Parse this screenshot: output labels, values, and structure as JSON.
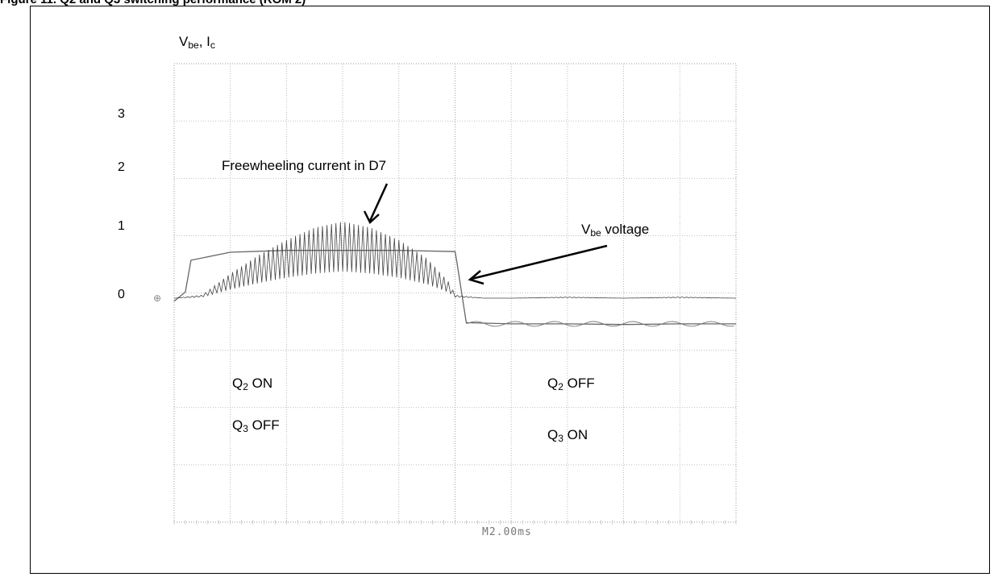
{
  "caption": "Figure 11. Q2 and Q3 switching performance (ROM 2)",
  "chart_data": {
    "type": "line",
    "ylabel_main": "V",
    "ylabel_main_sub": "be",
    "ylabel_sep": ", I",
    "ylabel_second_sub": "c",
    "y_ticks": [
      "3",
      "2",
      "1",
      "0"
    ],
    "y_tick_values": [
      3,
      2,
      1,
      0
    ],
    "timebase": "M2.00ms",
    "grid": "dotted 10x8 divisions",
    "series": [
      {
        "name_hidden_note": "",
        "x": [
          0,
          0.2,
          0.3,
          1.0,
          2.0,
          3.0,
          4.0,
          5.0,
          5.03,
          5.2,
          6.0,
          7.0,
          8.0,
          9.0,
          10.0
        ],
        "y": [
          -0.05,
          0.1,
          0.62,
          0.75,
          0.78,
          0.78,
          0.78,
          0.76,
          0.6,
          -0.4,
          -0.42,
          -0.42,
          -0.43,
          -0.42,
          -0.42
        ]
      },
      {
        "x": [
          0,
          0.5,
          1.0,
          1.5,
          2.0,
          2.5,
          3.0,
          3.5,
          4.0,
          4.5,
          4.9,
          5.0,
          5.5,
          6.0,
          7.0,
          8.0,
          9.0,
          10.0
        ],
        "y": [
          0,
          0.05,
          0.4,
          0.7,
          0.95,
          1.15,
          1.25,
          1.15,
          0.95,
          0.65,
          0.25,
          0.05,
          0.0,
          0.0,
          0.02,
          0.0,
          0.02,
          0.0
        ]
      }
    ],
    "annotations": [
      {
        "text": "Freewheeling current in D7"
      },
      {
        "main": "V",
        "sub": "be",
        "rest": " voltage"
      },
      {
        "main": "Q",
        "sub": "2",
        "rest": " ON"
      },
      {
        "main": "Q",
        "sub": "3",
        "rest": " OFF"
      },
      {
        "main": "Q",
        "sub": "2",
        "rest": " OFF"
      },
      {
        "main": "Q",
        "sub": "3",
        "rest": " ON"
      }
    ]
  }
}
